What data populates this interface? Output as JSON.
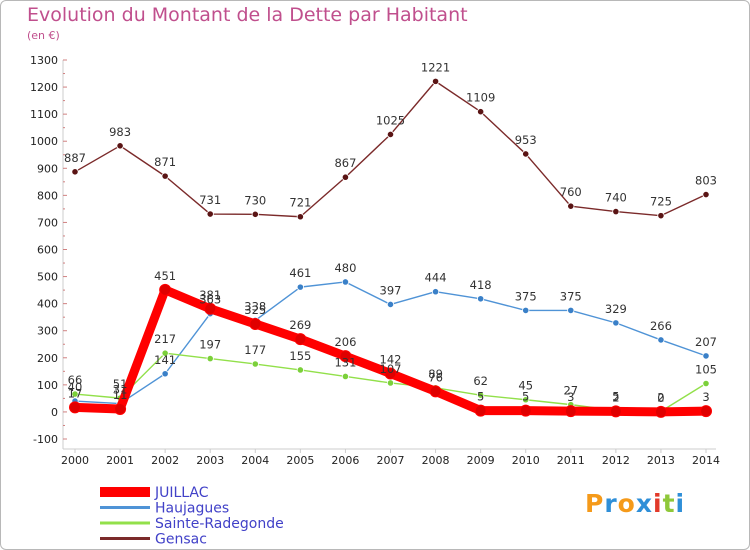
{
  "chart_data": {
    "type": "line",
    "title": "Evolution du Montant de la Dette par Habitant",
    "subtitle": "(en €)",
    "x": [
      2000,
      2001,
      2002,
      2003,
      2004,
      2005,
      2006,
      2007,
      2008,
      2009,
      2010,
      2011,
      2012,
      2013,
      2014
    ],
    "ylim": [
      -100,
      1300
    ],
    "yticks": [
      -100,
      0,
      100,
      200,
      300,
      400,
      500,
      600,
      700,
      800,
      900,
      1000,
      1100,
      1200,
      1300
    ],
    "grid": false,
    "legend_position": "bottom-left",
    "series": [
      {
        "name": "Gensac",
        "color": "#7b2a2a",
        "marker": "#5a1414",
        "values": [
          887,
          983,
          871,
          731,
          730,
          721,
          867,
          1025,
          1221,
          1109,
          953,
          760,
          740,
          725,
          803
        ]
      },
      {
        "name": "Haujagues",
        "color": "#4f93d6",
        "marker": "#3a80c8",
        "values": [
          40,
          31,
          141,
          363,
          338,
          461,
          480,
          397,
          444,
          418,
          375,
          375,
          329,
          266,
          207
        ]
      },
      {
        "name": "Sainte-Radegonde",
        "color": "#92e04a",
        "marker": "#7bd03a",
        "values": [
          66,
          51,
          217,
          197,
          177,
          155,
          131,
          107,
          89,
          62,
          45,
          27,
          5,
          2,
          105
        ]
      },
      {
        "name": "JUILLAC",
        "color": "#ff0000",
        "marker": "#e00000",
        "values": [
          17,
          11,
          451,
          381,
          325,
          269,
          206,
          142,
          76,
          5,
          5,
          3,
          2,
          0,
          3
        ]
      }
    ],
    "legend": [
      {
        "name": "JUILLAC",
        "color": "#ff0000",
        "text_color": "#4141c8"
      },
      {
        "name": "Haujagues",
        "color": "#4f93d6",
        "text_color": "#4141c8"
      },
      {
        "name": "Sainte-Radegonde",
        "color": "#92e04a",
        "text_color": "#4141c8"
      },
      {
        "name": "Gensac",
        "color": "#7b2a2a",
        "text_color": "#4141c8"
      }
    ]
  },
  "logo": {
    "text": "Proxiti",
    "letters": [
      "P",
      "r",
      "o",
      "x",
      "i",
      "t",
      "i"
    ],
    "colors": [
      "#f59a1a",
      "#2f8fd8",
      "#f59a1a",
      "#2f8fd8",
      "#e23a2a",
      "#8fc83a",
      "#2f8fd8"
    ]
  }
}
